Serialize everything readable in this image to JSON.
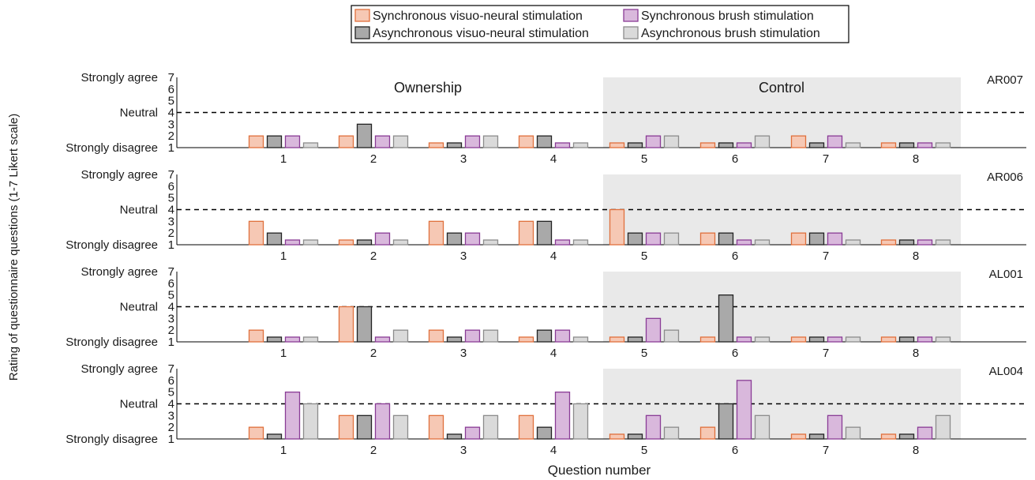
{
  "chart_data": {
    "type": "bar",
    "ylabel": "Rating of questionnaire questions (1-7 Likert scale)",
    "xlabel": "Question number",
    "ylim": [
      1,
      7
    ],
    "y_ticks": [
      "1",
      "2",
      "3",
      "4",
      "5",
      "6",
      "7"
    ],
    "y_text_labels": {
      "strongly_agree": "Strongly agree",
      "neutral": "Neutral",
      "strongly_disagree": "Strongly disagree"
    },
    "neutral_line": 4,
    "categories": [
      "1",
      "2",
      "3",
      "4",
      "5",
      "6",
      "7",
      "8"
    ],
    "regions": [
      {
        "label": "Ownership",
        "questions": [
          "1",
          "2",
          "3",
          "4"
        ],
        "shaded": false
      },
      {
        "label": "Control",
        "questions": [
          "5",
          "6",
          "7",
          "8"
        ],
        "shaded": true
      }
    ],
    "legend": {
      "position": "top-center",
      "entries": [
        {
          "name": "Synchronous visuo-neural stimulation",
          "fill": "#f6c8b4",
          "stroke": "#e0703c"
        },
        {
          "name": "Synchronous brush stimulation",
          "fill": "#d9b8dc",
          "stroke": "#8a3c96"
        },
        {
          "name": "Asynchronous visuo-neural stimulation",
          "fill": "#a9a9a9",
          "stroke": "#222222"
        },
        {
          "name": "Asynchronous brush stimulation",
          "fill": "#dadada",
          "stroke": "#8c8c8c"
        }
      ]
    },
    "series_order": [
      "Synchronous visuo-neural stimulation",
      "Asynchronous visuo-neural stimulation",
      "Synchronous brush stimulation",
      "Asynchronous brush stimulation"
    ],
    "panels": [
      {
        "subject": "AR007",
        "series": [
          {
            "name": "Synchronous visuo-neural stimulation",
            "values": [
              2,
              2,
              1,
              2,
              1,
              1,
              2,
              1
            ]
          },
          {
            "name": "Asynchronous visuo-neural stimulation",
            "values": [
              2,
              3,
              1,
              2,
              1,
              1,
              1,
              1
            ]
          },
          {
            "name": "Synchronous brush stimulation",
            "values": [
              2,
              2,
              2,
              1,
              2,
              1,
              2,
              1
            ]
          },
          {
            "name": "Asynchronous brush stimulation",
            "values": [
              1,
              2,
              2,
              1,
              2,
              2,
              1,
              1
            ]
          }
        ]
      },
      {
        "subject": "AR006",
        "series": [
          {
            "name": "Synchronous visuo-neural stimulation",
            "values": [
              3,
              1,
              3,
              3,
              4,
              2,
              2,
              1
            ]
          },
          {
            "name": "Asynchronous visuo-neural stimulation",
            "values": [
              2,
              1,
              2,
              3,
              2,
              2,
              2,
              1
            ]
          },
          {
            "name": "Synchronous brush stimulation",
            "values": [
              1,
              2,
              2,
              1,
              2,
              1,
              2,
              1
            ]
          },
          {
            "name": "Asynchronous brush stimulation",
            "values": [
              1,
              1,
              1,
              1,
              2,
              1,
              1,
              1
            ]
          }
        ]
      },
      {
        "subject": "AL001",
        "series": [
          {
            "name": "Synchronous visuo-neural stimulation",
            "values": [
              2,
              4,
              2,
              1,
              1,
              1,
              1,
              1
            ]
          },
          {
            "name": "Asynchronous visuo-neural stimulation",
            "values": [
              1,
              4,
              1,
              2,
              1,
              5,
              1,
              1
            ]
          },
          {
            "name": "Synchronous brush stimulation",
            "values": [
              1,
              1,
              2,
              2,
              3,
              1,
              1,
              1
            ]
          },
          {
            "name": "Asynchronous brush stimulation",
            "values": [
              1,
              2,
              2,
              1,
              2,
              1,
              1,
              1
            ]
          }
        ]
      },
      {
        "subject": "AL004",
        "series": [
          {
            "name": "Synchronous visuo-neural stimulation",
            "values": [
              2,
              3,
              3,
              3,
              1,
              2,
              1,
              1
            ]
          },
          {
            "name": "Asynchronous visuo-neural stimulation",
            "values": [
              1,
              3,
              1,
              2,
              1,
              4,
              1,
              1
            ]
          },
          {
            "name": "Synchronous brush stimulation",
            "values": [
              5,
              4,
              2,
              5,
              3,
              6,
              3,
              2
            ]
          },
          {
            "name": "Asynchronous brush stimulation",
            "values": [
              4,
              3,
              3,
              4,
              2,
              3,
              2,
              3
            ]
          }
        ]
      }
    ],
    "grid": false
  }
}
